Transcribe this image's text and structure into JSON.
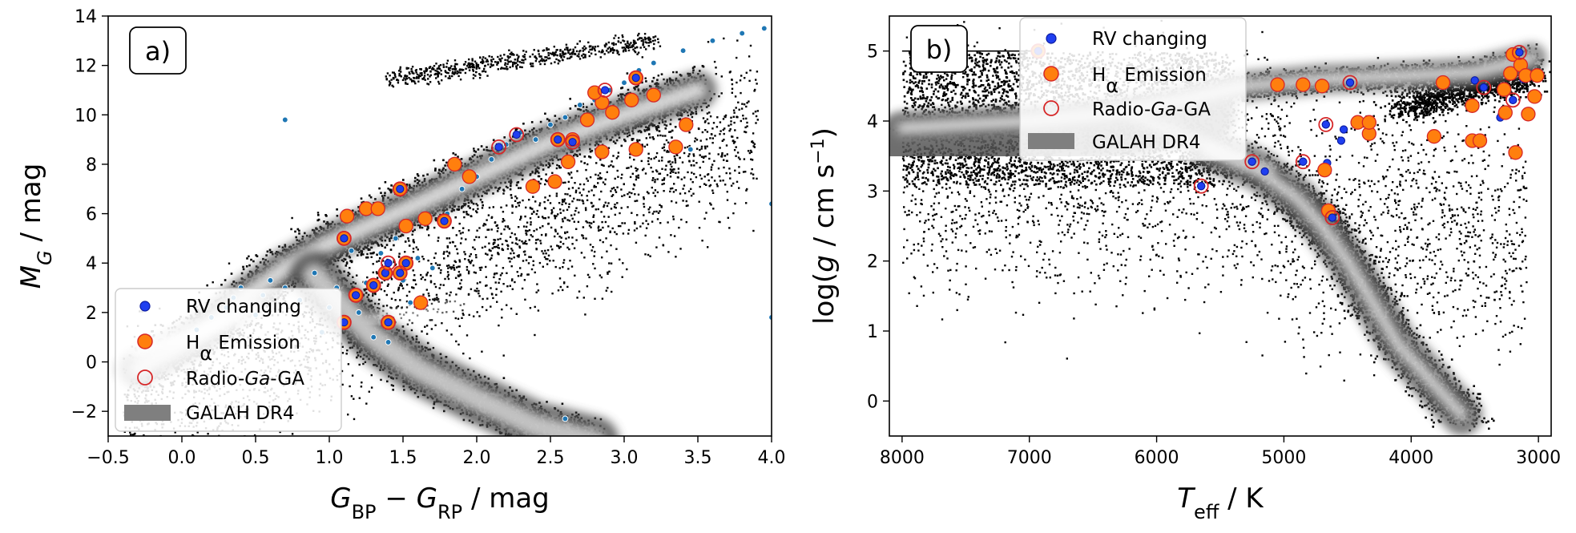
{
  "chart_data": [
    {
      "type": "scatter",
      "panel_label": "a)",
      "xlabel": "G_BP − G_RP / mag",
      "ylabel": "M_G / mag",
      "xlim": [
        -0.5,
        4.0
      ],
      "ylim": [
        14,
        -3
      ],
      "y_inverted": true,
      "xticks": [
        "−0.5",
        "0.0",
        "0.5",
        "1.0",
        "1.5",
        "2.0",
        "2.5",
        "3.0",
        "3.5",
        "4.0"
      ],
      "xtick_values": [
        -0.5,
        0.0,
        0.5,
        1.0,
        1.5,
        2.0,
        2.5,
        3.0,
        3.5,
        4.0
      ],
      "yticks": [
        "−2",
        "0",
        "2",
        "4",
        "6",
        "8",
        "10",
        "12",
        "14"
      ],
      "ytick_values": [
        -2,
        0,
        2,
        4,
        6,
        8,
        10,
        12,
        14
      ],
      "legend_position": "lower-left",
      "legend": [
        "RV changing",
        "Hα Emission",
        "Radio-Ga-GA",
        "GALAH DR4"
      ],
      "background_density": "GALAH DR4",
      "series": [
        {
          "name": "RV changing",
          "color": "#1f77b4",
          "points": [
            [
              0.1,
              1.3
            ],
            [
              0.2,
              1.8
            ],
            [
              0.3,
              2.2
            ],
            [
              0.35,
              2.6
            ],
            [
              0.4,
              3.0
            ],
            [
              0.5,
              1.9
            ],
            [
              0.55,
              2.7
            ],
            [
              0.6,
              3.3
            ],
            [
              0.7,
              3.0
            ],
            [
              0.8,
              2.5
            ],
            [
              0.9,
              3.6
            ],
            [
              0.95,
              1.2
            ],
            [
              1.0,
              2.2
            ],
            [
              1.05,
              3.0
            ],
            [
              1.1,
              1.6
            ],
            [
              1.15,
              4.5
            ],
            [
              1.2,
              2.0
            ],
            [
              1.25,
              3.2
            ],
            [
              1.3,
              1.0
            ],
            [
              1.35,
              4.4
            ],
            [
              1.4,
              0.8
            ],
            [
              1.45,
              5.0
            ],
            [
              1.5,
              3.3
            ],
            [
              1.55,
              2.4
            ],
            [
              1.6,
              4.2
            ],
            [
              1.7,
              3.8
            ],
            [
              1.8,
              6.0
            ],
            [
              1.9,
              7.0
            ],
            [
              2.0,
              7.5
            ],
            [
              2.1,
              8.2
            ],
            [
              2.2,
              8.8
            ],
            [
              2.3,
              9.3
            ],
            [
              2.4,
              9.0
            ],
            [
              2.5,
              9.6
            ],
            [
              2.6,
              9.9
            ],
            [
              2.7,
              10.4
            ],
            [
              2.8,
              10.6
            ],
            [
              2.9,
              11.0
            ],
            [
              3.0,
              11.3
            ],
            [
              3.1,
              11.8
            ],
            [
              3.2,
              12.1
            ],
            [
              3.4,
              12.6
            ],
            [
              3.6,
              13.0
            ],
            [
              3.8,
              13.3
            ],
            [
              3.95,
              13.5
            ],
            [
              4.0,
              1.8
            ],
            [
              4.0,
              6.4
            ],
            [
              2.6,
              -2.3
            ],
            [
              0.7,
              9.8
            ],
            [
              3.45,
              8.6
            ]
          ]
        },
        {
          "name": "Hα Emission",
          "color": "#ff7f0e",
          "points": [
            [
              1.1,
              1.6
            ],
            [
              1.4,
              1.6
            ],
            [
              1.62,
              2.4
            ],
            [
              1.18,
              2.7
            ],
            [
              1.3,
              3.1
            ],
            [
              1.38,
              3.6
            ],
            [
              1.48,
              3.6
            ],
            [
              1.52,
              4.0
            ],
            [
              1.1,
              5.0
            ],
            [
              1.52,
              5.5
            ],
            [
              1.65,
              5.8
            ],
            [
              1.78,
              5.7
            ],
            [
              1.12,
              5.9
            ],
            [
              1.25,
              6.2
            ],
            [
              1.33,
              6.2
            ],
            [
              1.48,
              7.0
            ],
            [
              1.95,
              7.5
            ],
            [
              1.85,
              8.0
            ],
            [
              2.38,
              7.1
            ],
            [
              2.53,
              7.3
            ],
            [
              2.62,
              8.1
            ],
            [
              2.65,
              9.0
            ],
            [
              2.85,
              8.5
            ],
            [
              3.08,
              8.6
            ],
            [
              3.35,
              8.7
            ],
            [
              3.42,
              9.6
            ],
            [
              2.75,
              9.8
            ],
            [
              2.92,
              10.1
            ],
            [
              2.85,
              10.5
            ],
            [
              3.05,
              10.6
            ],
            [
              3.2,
              10.8
            ],
            [
              2.8,
              10.9
            ],
            [
              2.55,
              9.0
            ],
            [
              3.08,
              11.5
            ]
          ]
        },
        {
          "name": "Radio-Ga-GA",
          "color": "#d62728",
          "points": [
            [
              1.1,
              1.6
            ],
            [
              1.4,
              1.6
            ],
            [
              1.18,
              2.7
            ],
            [
              1.3,
              3.1
            ],
            [
              1.38,
              3.6
            ],
            [
              1.48,
              3.6
            ],
            [
              1.52,
              4.0
            ],
            [
              1.1,
              5.0
            ],
            [
              1.78,
              5.7
            ],
            [
              1.48,
              7.0
            ],
            [
              2.15,
              8.7
            ],
            [
              2.27,
              9.2
            ],
            [
              2.65,
              8.9
            ],
            [
              2.55,
              9.0
            ],
            [
              2.87,
              11.0
            ],
            [
              3.08,
              11.5
            ],
            [
              1.4,
              4.0
            ]
          ]
        }
      ]
    },
    {
      "type": "scatter",
      "panel_label": "b)",
      "xlabel": "T_eff / K",
      "ylabel": "log(g / cm s^−1)",
      "xlim": [
        8100,
        2900
      ],
      "ylim": [
        5.5,
        -0.5
      ],
      "x_inverted": true,
      "y_inverted": true,
      "xticks": [
        "8000",
        "7000",
        "6000",
        "5000",
        "4000",
        "3000"
      ],
      "xtick_values": [
        8000,
        7000,
        6000,
        5000,
        4000,
        3000
      ],
      "yticks": [
        "0",
        "1",
        "2",
        "3",
        "4",
        "5"
      ],
      "ytick_values": [
        0,
        1,
        2,
        3,
        4,
        5
      ],
      "legend_position": "top-center",
      "legend": [
        "RV changing",
        "Hα Emission",
        "Radio-Ga-GA",
        "GALAH DR4"
      ],
      "background_density": "GALAH DR4",
      "series": [
        {
          "name": "RV changing",
          "color": "#1f77b4",
          "points": [
            [
              6930,
              5.0
            ],
            [
              5650,
              3.07
            ],
            [
              5250,
              3.42
            ],
            [
              5150,
              3.28
            ],
            [
              4850,
              3.42
            ],
            [
              4680,
              3.32
            ],
            [
              4660,
              3.4
            ],
            [
              4620,
              2.62
            ],
            [
              4550,
              3.72
            ],
            [
              4530,
              3.88
            ],
            [
              4670,
              3.95
            ],
            [
              4480,
              4.55
            ],
            [
              3500,
              4.58
            ],
            [
              3430,
              4.48
            ],
            [
              3300,
              4.05
            ],
            [
              3200,
              4.3
            ],
            [
              3150,
              4.98
            ],
            [
              3120,
              4.6
            ]
          ]
        },
        {
          "name": "Hα Emission",
          "color": "#ff7f0e",
          "points": [
            [
              6930,
              5.0
            ],
            [
              4650,
              2.72
            ],
            [
              4420,
              3.98
            ],
            [
              4330,
              3.82
            ],
            [
              4330,
              3.98
            ],
            [
              4680,
              3.3
            ],
            [
              3820,
              3.78
            ],
            [
              3750,
              4.55
            ],
            [
              3520,
              3.72
            ],
            [
              3460,
              3.72
            ],
            [
              3180,
              3.55
            ],
            [
              3270,
              4.45
            ],
            [
              3220,
              4.68
            ],
            [
              3200,
              4.95
            ],
            [
              3140,
              4.8
            ],
            [
              3100,
              4.65
            ],
            [
              3080,
              4.1
            ],
            [
              3030,
              4.35
            ],
            [
              3010,
              4.65
            ],
            [
              3520,
              4.22
            ],
            [
              5050,
              4.52
            ],
            [
              4850,
              4.52
            ],
            [
              4700,
              4.5
            ],
            [
              3260,
              4.12
            ]
          ]
        },
        {
          "name": "Radio-Ga-GA",
          "color": "#d62728",
          "points": [
            [
              6930,
              5.0
            ],
            [
              5650,
              3.07
            ],
            [
              5250,
              3.42
            ],
            [
              4850,
              3.42
            ],
            [
              4620,
              2.62
            ],
            [
              4670,
              3.95
            ],
            [
              4480,
              4.55
            ],
            [
              3430,
              4.48
            ],
            [
              3150,
              4.98
            ],
            [
              3200,
              4.3
            ]
          ]
        }
      ]
    }
  ]
}
